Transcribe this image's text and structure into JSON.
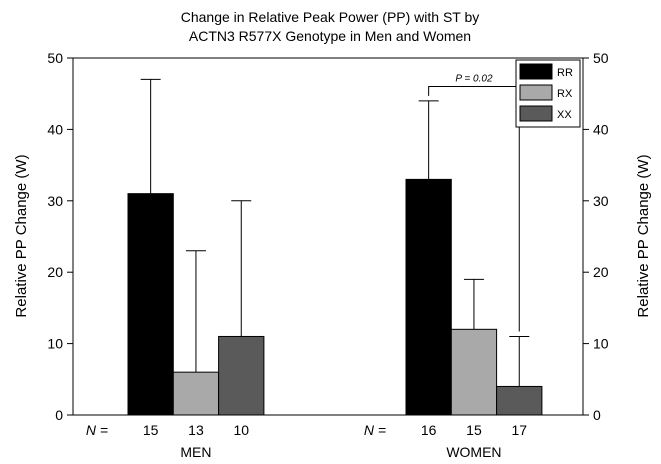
{
  "chart_data": {
    "type": "bar",
    "title": "Change in Relative Peak Power (PP) with ST by",
    "subtitle": "ACTN3 R577X Genotype in Men and Women",
    "ylabel_left": "Relative PP Change (W)",
    "ylabel_right": "Relative PP Change (W)",
    "ylim": [
      0,
      50
    ],
    "yticks": [
      0,
      10,
      20,
      30,
      40,
      50
    ],
    "grid": false,
    "legend_position": "top-right",
    "groups": [
      "MEN",
      "WOMEN"
    ],
    "n_label": "N =",
    "series": [
      {
        "name": "RR",
        "color": "#000000",
        "values": [
          31,
          33
        ],
        "error_upper": [
          47,
          44
        ],
        "n": [
          "15",
          "16"
        ]
      },
      {
        "name": "RX",
        "color": "#a9a9a9",
        "values": [
          6,
          12
        ],
        "error_upper": [
          23,
          19
        ],
        "n": [
          "13",
          "15"
        ]
      },
      {
        "name": "XX",
        "color": "#5a5a5a",
        "values": [
          11,
          4
        ],
        "error_upper": [
          30,
          11
        ],
        "n": [
          "10",
          "17"
        ]
      }
    ],
    "annotation": {
      "label": "P = 0.02",
      "group": "WOMEN",
      "from_series": "RR",
      "to_series": "XX"
    }
  }
}
